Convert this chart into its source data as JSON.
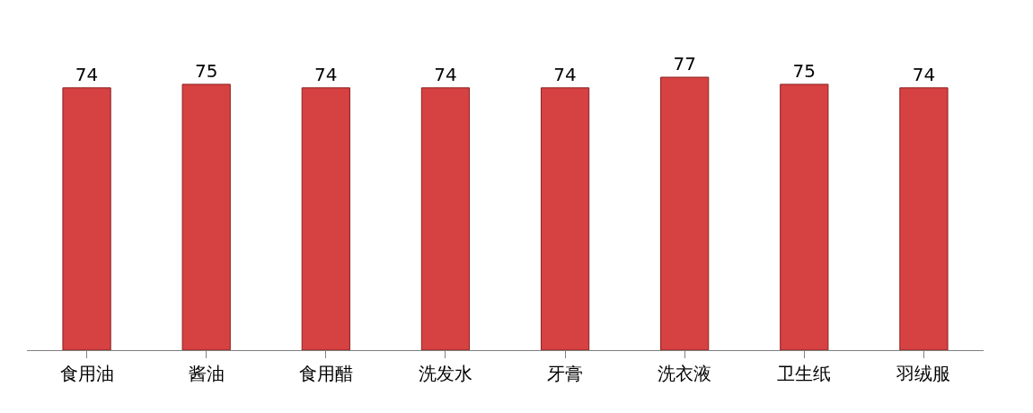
{
  "chart_data": {
    "type": "bar",
    "categories": [
      "食用油",
      "酱油",
      "食用醋",
      "洗发水",
      "牙膏",
      "洗衣液",
      "卫生纸",
      "羽绒服"
    ],
    "values": [
      74,
      75,
      74,
      74,
      74,
      77,
      75,
      74
    ],
    "color": "#d64141",
    "data_labels": true,
    "tick_labels": "x",
    "legend": false
  }
}
